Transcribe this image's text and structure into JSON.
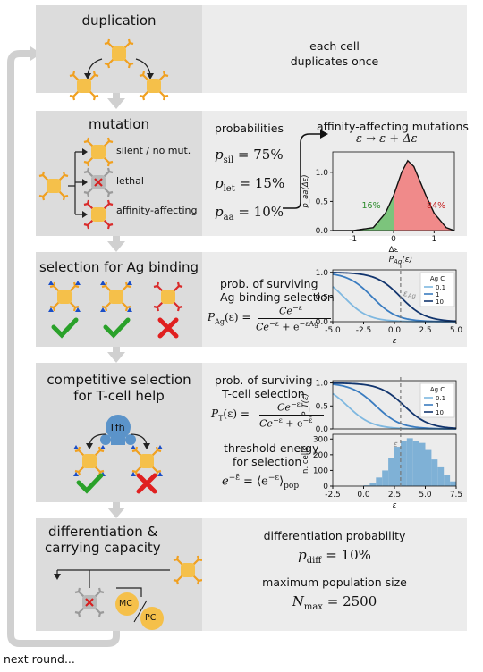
{
  "duplication": {
    "title": "duplication",
    "desc_line1": "each cell",
    "desc_line2": "duplicates once"
  },
  "mutation": {
    "title": "mutation",
    "outcomes": [
      "silent / no mut.",
      "lethal",
      "affinity-affecting"
    ],
    "probabilities_label": "probabilities",
    "p_sil": "p",
    "p_sil_sub": "sil",
    "p_sil_val": "= 75%",
    "p_let_sub": "let",
    "p_let_val": "= 15%",
    "p_aa_sub": "aa",
    "p_aa_val": "= 10%",
    "aff_title": "affinity-affecting mutations",
    "aff_eq": "ε → ε + Δε",
    "green_pct": "16%",
    "red_pct": "84%"
  },
  "selection_ag": {
    "title": "selection for Ag binding",
    "prob_line1": "prob. of surviving",
    "prob_line2": "Ag-binding selection",
    "formula_lhs": "P",
    "formula_lhs_sub": "Ag",
    "formula_lhs_arg": "(ε) =",
    "formula_num": "Ce",
    "formula_num_sup": "−ε",
    "formula_den": "Ce",
    "formula_den_sup1": "−ε",
    "formula_den_mid": " + e",
    "formula_den_sup2": "−εAg",
    "chart_title": "P",
    "chart_title_sub": "Ag",
    "chart_title_arg": "(ε)",
    "eps_ag_label": "ε",
    "eps_ag_sub": "Ag"
  },
  "selection_tcell": {
    "title_line1": "competitive selection",
    "title_line2": "for T-cell help",
    "tfh_label": "Tfh",
    "prob_line1": "prob. of surviving",
    "prob_line2": "T-cell selection",
    "formula_lhs": "P",
    "formula_lhs_sub": "T",
    "formula_lhs_arg": "(ε) =",
    "thr_line1": "threshold energy",
    "thr_line2": "for selection",
    "thr_formula": "e",
    "thr_sup": "−ε̄",
    "thr_rhs": " = ⟨e",
    "thr_rhs_sup": "−ε",
    "thr_rhs_end": "⟩",
    "thr_sub": "pop",
    "hist_ylabel": "n. cells",
    "eps_bar_label": "ε̄"
  },
  "differentiation": {
    "title_line1": "differentiation &",
    "title_line2": "carrying capacity",
    "mc_label": "MC",
    "pc_label": "PC",
    "diff_label": "differentiation probability",
    "p_diff": "p",
    "p_diff_sub": "diff",
    "p_diff_val": "= 10%",
    "max_label": "maximum population size",
    "n_max": "N",
    "n_max_sub": "max",
    "n_max_val": "= 2500"
  },
  "next_round": "next round...",
  "legend": {
    "title": "Ag C",
    "entries": [
      "0.1",
      "1",
      "10"
    ]
  },
  "colors": {
    "cell": "#f5c04a",
    "receptor_ok": "#f0a020",
    "receptor_bad": "#d92b2b",
    "lethal_gray": "#b8b8b8",
    "check": "#2aa12a",
    "cross": "#e02020",
    "antigen": "#1a4ec7",
    "tfh": "#5b93c9",
    "line_light": "#7fb8e0",
    "line_mid": "#3a7cc0",
    "line_dark": "#12356e",
    "hist": "#7fb1d6",
    "green_area": "#7cc47c",
    "red_area": "#f08a8a"
  },
  "chart_data": [
    {
      "type": "area",
      "title": "affinity-affecting mutations",
      "xlabel": "Δε",
      "ylabel": "p_aa(Δε)",
      "xlim": [
        -1.5,
        1.5
      ],
      "ylim": [
        0,
        1.35
      ],
      "xticks": [
        -1,
        0,
        1
      ],
      "yticks": [
        0.0,
        0.5,
        1.0
      ],
      "series": [
        {
          "x": [
            -1.5,
            -1.0,
            -0.5,
            -0.2,
            0.0,
            0.2,
            0.35,
            0.5,
            0.8,
            1.0,
            1.3,
            1.5
          ],
          "values": [
            0.0,
            0.0,
            0.05,
            0.3,
            0.6,
            1.0,
            1.2,
            1.1,
            0.6,
            0.3,
            0.05,
            0.0
          ]
        }
      ],
      "annotations": [
        "16%",
        "84%"
      ]
    },
    {
      "type": "line",
      "title": "P_Ag(ε)",
      "xlabel": "ε",
      "xlim": [
        -5,
        5
      ],
      "ylim": [
        0,
        1.05
      ],
      "xticks": [
        -5.0,
        -2.5,
        0.0,
        2.5,
        5.0
      ],
      "yticks": [
        0.0,
        0.5,
        1.0
      ],
      "legend_title": "Ag C",
      "series": [
        {
          "name": "0.1",
          "C": 0.1
        },
        {
          "name": "1",
          "C": 1
        },
        {
          "name": "10",
          "C": 10
        }
      ],
      "eps_ag": 0.5
    },
    {
      "type": "line",
      "ylabel": "P_T(ε)",
      "xlim": [
        -2.5,
        7.5
      ],
      "ylim": [
        0,
        1.05
      ],
      "yticks": [
        0.0,
        0.5,
        1.0
      ],
      "legend_title": "Ag C",
      "series": [
        {
          "name": "0.1",
          "C": 0.1
        },
        {
          "name": "1",
          "C": 1
        },
        {
          "name": "10",
          "C": 10
        }
      ],
      "eps_bar": 3
    },
    {
      "type": "bar",
      "xlabel": "ε",
      "ylabel": "n. cells",
      "xlim": [
        -2.5,
        7.5
      ],
      "ylim": [
        0,
        330
      ],
      "xticks": [
        -2.5,
        0.0,
        2.5,
        5.0,
        7.5
      ],
      "yticks": [
        0,
        100,
        200,
        300
      ],
      "bin_width": 0.5,
      "bin_starts": [
        0.0,
        0.5,
        1.0,
        1.5,
        2.0,
        2.5,
        3.0,
        3.5,
        4.0,
        4.5,
        5.0,
        5.5,
        6.0,
        6.5,
        7.0
      ],
      "values": [
        5,
        20,
        55,
        100,
        180,
        250,
        290,
        305,
        290,
        275,
        230,
        170,
        120,
        70,
        30
      ],
      "eps_bar": 3
    }
  ]
}
